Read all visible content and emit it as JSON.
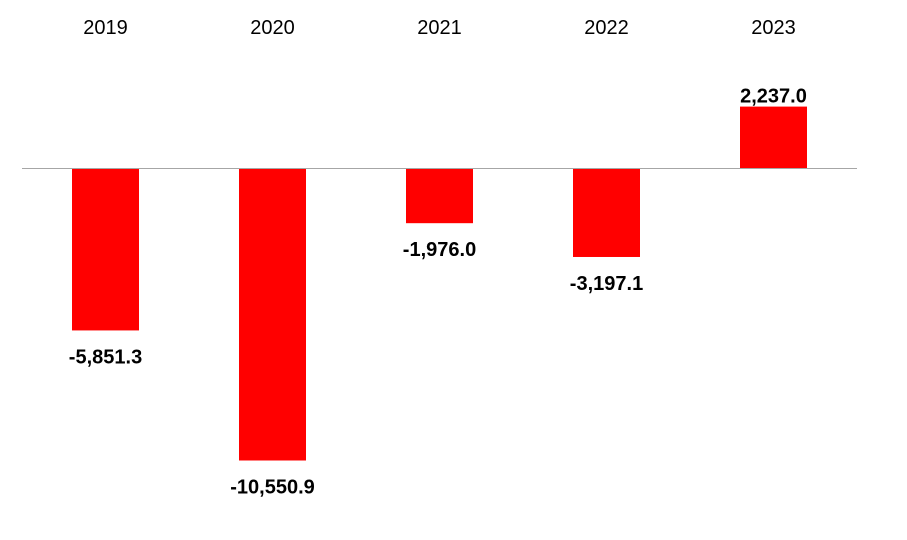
{
  "chart_data": {
    "type": "bar",
    "categories": [
      "2019",
      "2020",
      "2021",
      "2022",
      "2023"
    ],
    "values": [
      -5851.3,
      -10550.9,
      -1976.0,
      -3197.1,
      2237.0
    ],
    "data_labels": [
      "-5,851.3",
      "-10,550.9",
      "-1,976.0",
      "-3,197.1",
      "2,237.0"
    ],
    "title": "",
    "xlabel": "",
    "ylabel": "",
    "ylim": [
      -12000,
      6000
    ],
    "category_axis_position": "top",
    "grid": false,
    "legend": false,
    "colors": {
      "bar": "#ff0000",
      "axis": "#a6a6a6",
      "text": "#000000"
    }
  }
}
